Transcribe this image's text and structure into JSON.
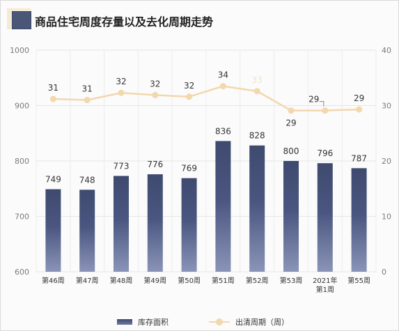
{
  "title": "商品住宅周度存量以及去化周期走势",
  "chart_data": {
    "type": "bar",
    "categories": [
      "第46周",
      "第47周",
      "第48周",
      "第49周",
      "第50周",
      "第51周",
      "第52周",
      "第53周",
      "2021年\n第1周",
      "第55周"
    ],
    "series": [
      {
        "name": "库存面积",
        "type": "bar",
        "axis": "left",
        "values": [
          749,
          748,
          773,
          776,
          769,
          836,
          828,
          800,
          796,
          787
        ],
        "color": "#45507a"
      },
      {
        "name": "出清周期（周）",
        "type": "line",
        "axis": "right",
        "values": [
          31,
          31,
          32,
          32,
          32,
          34,
          33,
          29,
          29,
          29
        ],
        "color": "#f3d7ad"
      }
    ],
    "y_left": {
      "min": 600,
      "max": 1000,
      "ticks": [
        600,
        700,
        800,
        900,
        1000
      ]
    },
    "y_right": {
      "min": 0,
      "max": 40,
      "ticks": [
        0,
        10,
        20,
        30,
        40
      ]
    },
    "line_plot_values": [
      31.2,
      31.0,
      32.3,
      31.9,
      31.6,
      33.5,
      32.6,
      29.1,
      29.1,
      29.3
    ],
    "grid": true,
    "legend_position": "bottom"
  }
}
